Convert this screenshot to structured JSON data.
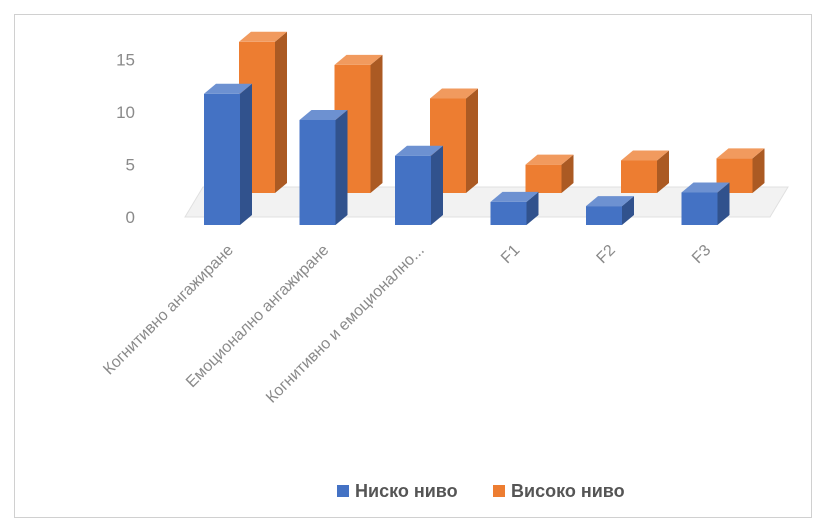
{
  "chart_data": {
    "type": "bar",
    "categories": [
      "Когнитивно ангажиране",
      "Емоционално ангажиране",
      "Когнитивно и емоционално...",
      "F1",
      "F2",
      "F3"
    ],
    "series": [
      {
        "name": "Ниско ниво",
        "values": [
          12.5,
          10,
          6.6,
          2.2,
          1.8,
          3.1
        ],
        "color": "#4472c4"
      },
      {
        "name": "Високо ниво",
        "values": [
          14.4,
          12.2,
          9,
          2.7,
          3.1,
          3.3
        ],
        "color": "#ed7d31"
      }
    ],
    "y_ticks": [
      "0",
      "5",
      "10",
      "15"
    ],
    "ylim": [
      0,
      15
    ],
    "legend_position": "bottom",
    "style": "3d-clustered-column"
  }
}
